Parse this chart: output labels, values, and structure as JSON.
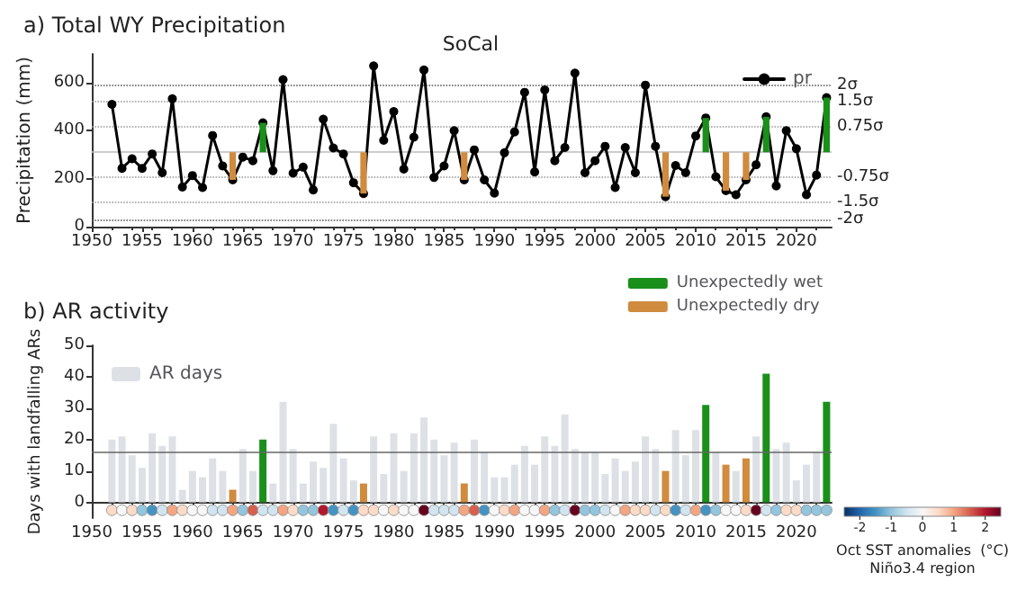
{
  "chart_data": [
    {
      "type": "line",
      "title": "a) Total WY Precipitation",
      "subtitle": "SoCal",
      "ylabel": "Precipitation (mm)",
      "x": [
        1952,
        1953,
        1954,
        1955,
        1956,
        1957,
        1958,
        1959,
        1960,
        1961,
        1962,
        1963,
        1964,
        1965,
        1966,
        1967,
        1968,
        1969,
        1970,
        1971,
        1972,
        1973,
        1974,
        1975,
        1976,
        1977,
        1978,
        1979,
        1980,
        1981,
        1982,
        1983,
        1984,
        1985,
        1986,
        1987,
        1988,
        1989,
        1990,
        1991,
        1992,
        1993,
        1994,
        1995,
        1996,
        1997,
        1998,
        1999,
        2000,
        2001,
        2002,
        2003,
        2004,
        2005,
        2006,
        2007,
        2008,
        2009,
        2010,
        2011,
        2012,
        2013,
        2014,
        2015,
        2016,
        2017,
        2018,
        2019,
        2020,
        2021,
        2022,
        2023
      ],
      "series": [
        {
          "name": "pr",
          "color": "#000000",
          "values": [
            510,
            243,
            283,
            243,
            303,
            225,
            533,
            165,
            213,
            163,
            380,
            253,
            195,
            290,
            275,
            433,
            233,
            613,
            223,
            248,
            153,
            448,
            328,
            303,
            183,
            138,
            670,
            360,
            480,
            240,
            373,
            653,
            205,
            253,
            400,
            195,
            320,
            195,
            140,
            308,
            395,
            560,
            228,
            570,
            275,
            330,
            640,
            225,
            275,
            335,
            163,
            330,
            225,
            590,
            335,
            125,
            255,
            225,
            378,
            453,
            208,
            150,
            133,
            195,
            258,
            458,
            170,
            400,
            325,
            133,
            215,
            538
          ]
        },
        {
          "type": "bar",
          "color": "#1a8f1a",
          "x": [
            1967,
            2011,
            2017,
            2023
          ],
          "base": [
            310,
            310,
            310,
            310
          ],
          "values": [
            123,
            143,
            148,
            228
          ]
        },
        {
          "type": "bar",
          "color": "#d08b3f",
          "x": [
            1964,
            1977,
            1987,
            2007,
            2013,
            2015
          ],
          "base": [
            310,
            310,
            310,
            310,
            310,
            310
          ],
          "values": [
            -115,
            -172,
            -115,
            -185,
            -160,
            -115
          ]
        }
      ],
      "xlim": [
        1950,
        2023.5
      ],
      "xticks": [
        1950,
        1955,
        1960,
        1965,
        1970,
        1975,
        1980,
        1985,
        1990,
        1995,
        2000,
        2005,
        2010,
        2015,
        2020
      ],
      "ylim": [
        0,
        720
      ],
      "yticks": [
        0,
        200,
        400,
        600
      ],
      "ref_lines": [
        {
          "axis": "y",
          "value": 590,
          "label": "2σ",
          "color": "#555555",
          "line_style": "dotted"
        },
        {
          "axis": "y",
          "value": 520,
          "label": "1.5σ",
          "color": "#999999",
          "line_style": "dotted"
        },
        {
          "axis": "y",
          "value": 415,
          "label": "0.75σ",
          "color": "#999999",
          "line_style": "dotted"
        },
        {
          "axis": "y",
          "value": 310,
          "label": null,
          "color": "#bbbbbb",
          "line_style": "solid"
        },
        {
          "axis": "y",
          "value": 205,
          "label": "-0.75σ",
          "color": "#999999",
          "line_style": "dotted"
        },
        {
          "axis": "y",
          "value": 100,
          "label": "-1.5σ",
          "color": "#999999",
          "line_style": "dotted"
        },
        {
          "axis": "y",
          "value": 30,
          "label": "-2σ",
          "color": "#555555",
          "line_style": "dotted"
        }
      ],
      "marker": "circle",
      "line_style": "solid",
      "legend": "top right"
    },
    {
      "type": "bar",
      "title": "b) AR activity",
      "ylabel": "Days with landfalling ARs",
      "clabel": "Oct SST anomalies  (°C)\nNiño3.4 region",
      "x": [
        1952,
        1953,
        1954,
        1955,
        1956,
        1957,
        1958,
        1959,
        1960,
        1961,
        1962,
        1963,
        1964,
        1965,
        1966,
        1967,
        1968,
        1969,
        1970,
        1971,
        1972,
        1973,
        1974,
        1975,
        1976,
        1977,
        1978,
        1979,
        1980,
        1981,
        1982,
        1983,
        1984,
        1985,
        1986,
        1987,
        1988,
        1989,
        1990,
        1991,
        1992,
        1993,
        1994,
        1995,
        1996,
        1997,
        1998,
        1999,
        2000,
        2001,
        2002,
        2003,
        2004,
        2005,
        2006,
        2007,
        2008,
        2009,
        2010,
        2011,
        2012,
        2013,
        2014,
        2015,
        2016,
        2017,
        2018,
        2019,
        2020,
        2021,
        2022,
        2023
      ],
      "series": [
        {
          "name": "AR days",
          "color": "#dde1e6",
          "values": [
            20,
            21,
            15,
            11,
            22,
            18,
            21,
            4,
            10,
            8,
            14,
            10,
            null,
            17,
            10,
            null,
            6,
            32,
            17,
            6,
            13,
            11,
            25,
            14,
            7,
            null,
            21,
            9,
            22,
            10,
            22,
            27,
            20,
            15,
            19,
            null,
            20,
            16,
            8,
            8,
            12,
            18,
            12,
            21,
            18,
            28,
            17,
            16,
            16,
            9,
            14,
            10,
            13,
            21,
            17,
            null,
            23,
            15,
            23,
            null,
            16,
            null,
            10,
            null,
            21,
            null,
            17,
            19,
            7,
            12,
            16,
            null
          ]
        },
        {
          "name": "Unexpectedly wet",
          "color": "#1a8f1a",
          "x": [
            1967,
            2011,
            2017,
            2023
          ],
          "values": [
            20,
            31,
            41,
            32
          ]
        },
        {
          "name": "Unexpectedly dry",
          "color": "#d08b3f",
          "x": [
            1964,
            1977,
            1987,
            2007,
            2013,
            2015
          ],
          "values": [
            4,
            6,
            6,
            10,
            12,
            14
          ]
        },
        {
          "type": "scatter",
          "values": [
            -2.5,
            -2.5,
            -2.5,
            -2.5,
            -2.5,
            -2.5,
            -2.5,
            -2.5,
            -2.5,
            -2.5,
            -2.5,
            -2.5,
            -2.5,
            -2.5,
            -2.5,
            -2.5,
            -2.5,
            -2.5,
            -2.5,
            -2.5,
            -2.5,
            -2.5,
            -2.5,
            -2.5,
            -2.5,
            -2.5,
            -2.5,
            -2.5,
            -2.5,
            -2.5,
            -2.5,
            -2.5,
            -2.5,
            -2.5,
            -2.5,
            -2.5,
            -2.5,
            -2.5,
            -2.5,
            -2.5,
            -2.5,
            -2.5,
            -2.5,
            -2.5,
            -2.5,
            -2.5,
            -2.5,
            -2.5,
            -2.5,
            -2.5,
            -2.5,
            -2.5,
            -2.5,
            -2.5,
            -2.5,
            -2.5,
            -2.5,
            -2.5,
            -2.5,
            -2.5,
            -2.5,
            -2.5,
            -2.5,
            -2.5,
            -2.5,
            -2.5,
            -2.5,
            -2.5,
            -2.5,
            -2.5,
            -2.5,
            -2.5
          ],
          "colors": [
            "#fddbc7",
            "#f7f7f7",
            "#fddbc7",
            "#92c5de",
            "#4393c3",
            "#d1e5f0",
            "#f4a582",
            "#fddbc7",
            "#f7f7f7",
            "#f7f7f7",
            "#d1e5f0",
            "#d1e5f0",
            "#f4a582",
            "#92c5de",
            "#d6604d",
            "#d1e5f0",
            "#d1e5f0",
            "#f4a582",
            "#fddbc7",
            "#92c5de",
            "#92c5de",
            "#b2182b",
            "#4393c3",
            "#d1e5f0",
            "#4393c3",
            "#fddbc7",
            "#fddbc7",
            "#f7f7f7",
            "#fddbc7",
            "#f7f7f7",
            "#f7f7f7",
            "#67001f",
            "#d1e5f0",
            "#d1e5f0",
            "#d1e5f0",
            "#f4a582",
            "#d6604d",
            "#4393c3",
            "#f7f7f7",
            "#fddbc7",
            "#f4a582",
            "#f7f7f7",
            "#f7f7f7",
            "#f4a582",
            "#92c5de",
            "#d1e5f0",
            "#67001f",
            "#92c5de",
            "#92c5de",
            "#d1e5f0",
            "#f7f7f7",
            "#f4a582",
            "#fddbc7",
            "#fddbc7",
            "#d1e5f0",
            "#fddbc7",
            "#4393c3",
            "#d1e5f0",
            "#f4a582",
            "#4393c3",
            "#92c5de",
            "#f7f7f7",
            "#f7f7f7",
            "#fddbc7",
            "#67001f",
            "#d1e5f0",
            "#92c5de",
            "#fddbc7",
            "#fddbc7",
            "#92c5de",
            "#92c5de",
            "#92c5de"
          ]
        }
      ],
      "xlim": [
        1950,
        2023.5
      ],
      "xticks": [
        1950,
        1955,
        1960,
        1965,
        1970,
        1975,
        1980,
        1985,
        1990,
        1995,
        2000,
        2005,
        2010,
        2015,
        2020
      ],
      "ylim": [
        -5,
        50
      ],
      "yticks": [
        0,
        10,
        20,
        30,
        40,
        50
      ],
      "clim": [
        -2.5,
        2.5
      ],
      "cticks": [
        -2,
        -1,
        0,
        1,
        2
      ],
      "ref_lines": [
        {
          "axis": "y",
          "value": 16,
          "label": null,
          "color": "#666666",
          "line_style": "solid"
        }
      ],
      "legend": "top left"
    }
  ]
}
